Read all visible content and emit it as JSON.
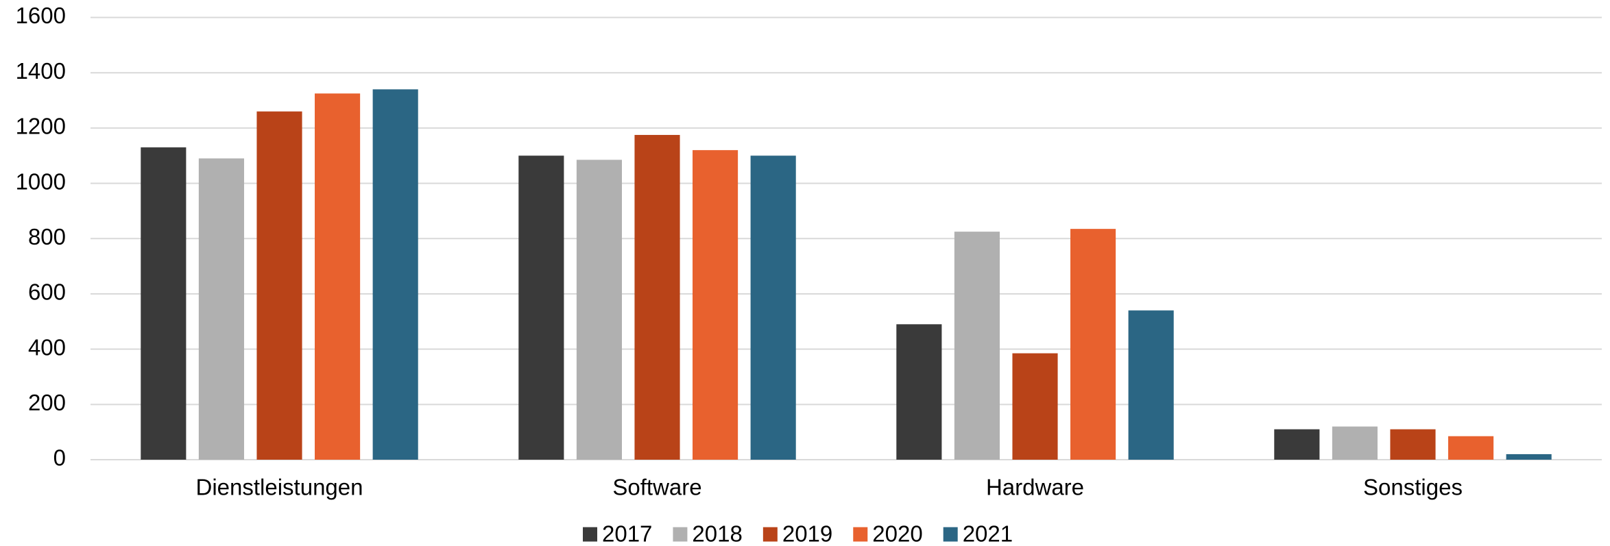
{
  "chart_data": {
    "type": "bar",
    "categories": [
      "Dienstleistungen",
      "Software",
      "Hardware",
      "Sonstiges"
    ],
    "series": [
      {
        "name": "2017",
        "color": "#3a3a3a",
        "values": [
          1130,
          1100,
          490,
          110
        ]
      },
      {
        "name": "2018",
        "color": "#b0b0b0",
        "values": [
          1090,
          1085,
          825,
          120
        ]
      },
      {
        "name": "2019",
        "color": "#b94318",
        "values": [
          1260,
          1175,
          385,
          110
        ]
      },
      {
        "name": "2020",
        "color": "#e8612e",
        "values": [
          1325,
          1120,
          835,
          85
        ]
      },
      {
        "name": "2021",
        "color": "#2b6684",
        "values": [
          1340,
          1100,
          540,
          20
        ]
      }
    ],
    "ylim": [
      0,
      1600
    ],
    "yticks": [
      0,
      200,
      400,
      600,
      800,
      1000,
      1200,
      1400,
      1600
    ],
    "grid": true,
    "legend": "bottom"
  }
}
